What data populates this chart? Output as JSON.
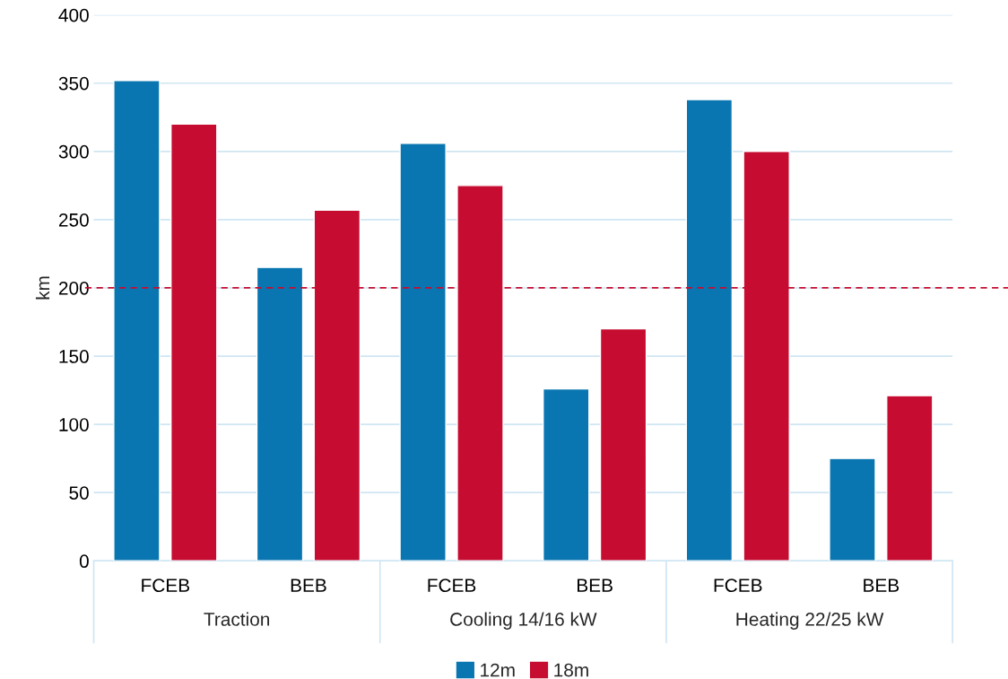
{
  "chart_data": {
    "type": "bar",
    "ylabel": "km",
    "categories": [
      "FCEB",
      "BEB",
      "FCEB",
      "BEB",
      "FCEB",
      "BEB"
    ],
    "series": [
      {
        "name": "12m",
        "color": "#0a76b1",
        "values": [
          352,
          215,
          306,
          126,
          338,
          75
        ]
      },
      {
        "name": "18m",
        "color": "#c60c30",
        "values": [
          320,
          257,
          275,
          170,
          300,
          121
        ]
      }
    ],
    "annotations": [
      "Traction",
      "Cooling 14/16 kW",
      "Heating 22/25 kW"
    ],
    "ref_lines": [
      {
        "axis": "y",
        "value": 200,
        "color": "#c60c30",
        "line_style": "dashed"
      }
    ],
    "ylim": [
      0,
      400
    ],
    "yticks": [
      0,
      50,
      100,
      150,
      200,
      250,
      300,
      350,
      400
    ],
    "grid": "y",
    "legend": "bottom"
  }
}
